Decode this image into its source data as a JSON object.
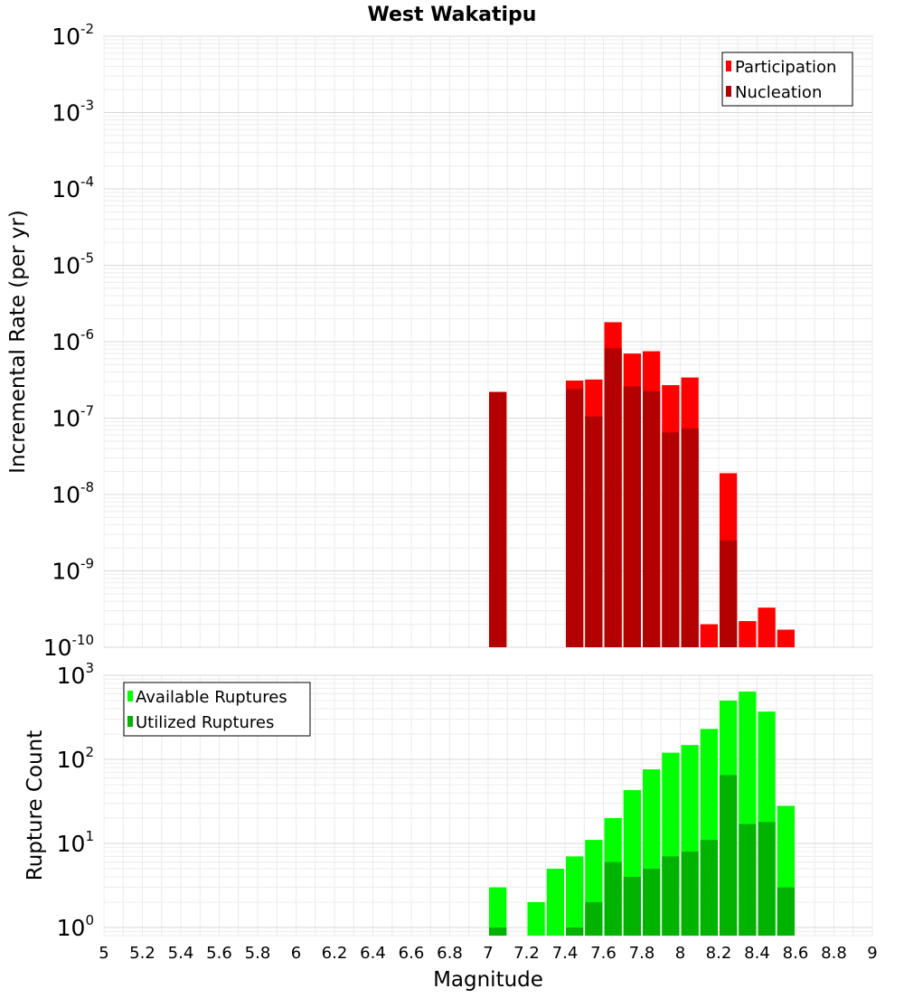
{
  "chart_data": [
    {
      "type": "bar",
      "title": "West Wakatipu",
      "xlabel": "Magnitude",
      "ylabel": "Incremental Rate (per yr)",
      "yscale": "log",
      "ylim": [
        1e-10,
        0.01
      ],
      "xlim": [
        5,
        9
      ],
      "bar_width": 0.1,
      "grid": true,
      "legend_position": "top-right",
      "series": [
        {
          "name": "Participation",
          "color": "#ff0000",
          "x": [
            7.05,
            7.45,
            7.55,
            7.65,
            7.75,
            7.85,
            7.95,
            8.05,
            8.15,
            8.25,
            8.35,
            8.45,
            8.55
          ],
          "values": [
            2.2e-07,
            3.1e-07,
            3.2e-07,
            1.8e-06,
            7e-07,
            7.5e-07,
            2.7e-07,
            3.4e-07,
            2e-10,
            1.9e-08,
            2.2e-10,
            3.3e-10,
            1.7e-10
          ]
        },
        {
          "name": "Nucleation",
          "color": "#b30000",
          "x": [
            7.05,
            7.45,
            7.55,
            7.65,
            7.75,
            7.85,
            7.95,
            8.05,
            8.25
          ],
          "values": [
            2.2e-07,
            2.4e-07,
            1.05e-07,
            8.2e-07,
            2.6e-07,
            2.25e-07,
            6.5e-08,
            7.3e-08,
            2.5e-09
          ]
        }
      ],
      "yticks": [
        {
          "base": "10",
          "exp": "-2"
        },
        {
          "base": "10",
          "exp": "-3"
        },
        {
          "base": "10",
          "exp": "-4"
        },
        {
          "base": "10",
          "exp": "-5"
        },
        {
          "base": "10",
          "exp": "-6"
        },
        {
          "base": "10",
          "exp": "-7"
        },
        {
          "base": "10",
          "exp": "-8"
        },
        {
          "base": "10",
          "exp": "-9"
        },
        {
          "base": "10",
          "exp": "-10"
        }
      ]
    },
    {
      "type": "bar",
      "xlabel": "Magnitude",
      "ylabel": "Rupture Count",
      "yscale": "log",
      "ylim": [
        0.8,
        1000
      ],
      "xlim": [
        5,
        9
      ],
      "bar_width": 0.1,
      "grid": true,
      "legend_position": "top-left",
      "series": [
        {
          "name": "Available Ruptures",
          "color": "#00ff00",
          "x": [
            7.05,
            7.25,
            7.35,
            7.45,
            7.55,
            7.65,
            7.75,
            7.85,
            7.95,
            8.05,
            8.15,
            8.25,
            8.35,
            8.45,
            8.55
          ],
          "values": [
            3,
            2,
            5,
            7,
            11,
            20,
            43,
            76,
            120,
            148,
            230,
            500,
            640,
            370,
            28
          ]
        },
        {
          "name": "Utilized Ruptures",
          "color": "#00b300",
          "x": [
            7.05,
            7.45,
            7.55,
            7.65,
            7.75,
            7.85,
            7.95,
            8.05,
            8.15,
            8.25,
            8.35,
            8.45,
            8.55
          ],
          "values": [
            1,
            1,
            2,
            6,
            4,
            5,
            7,
            8,
            11,
            65,
            17,
            18,
            3
          ]
        }
      ],
      "yticks": [
        {
          "base": "10",
          "exp": "3"
        },
        {
          "base": "10",
          "exp": "2"
        },
        {
          "base": "10",
          "exp": "1"
        },
        {
          "base": "10",
          "exp": "0"
        }
      ],
      "xticks": [
        "5",
        "5.2",
        "5.4",
        "5.6",
        "5.8",
        "6",
        "6.2",
        "6.4",
        "6.6",
        "6.8",
        "7",
        "7.2",
        "7.4",
        "7.6",
        "7.8",
        "8",
        "8.2",
        "8.4",
        "8.6",
        "8.8",
        "9"
      ]
    }
  ]
}
